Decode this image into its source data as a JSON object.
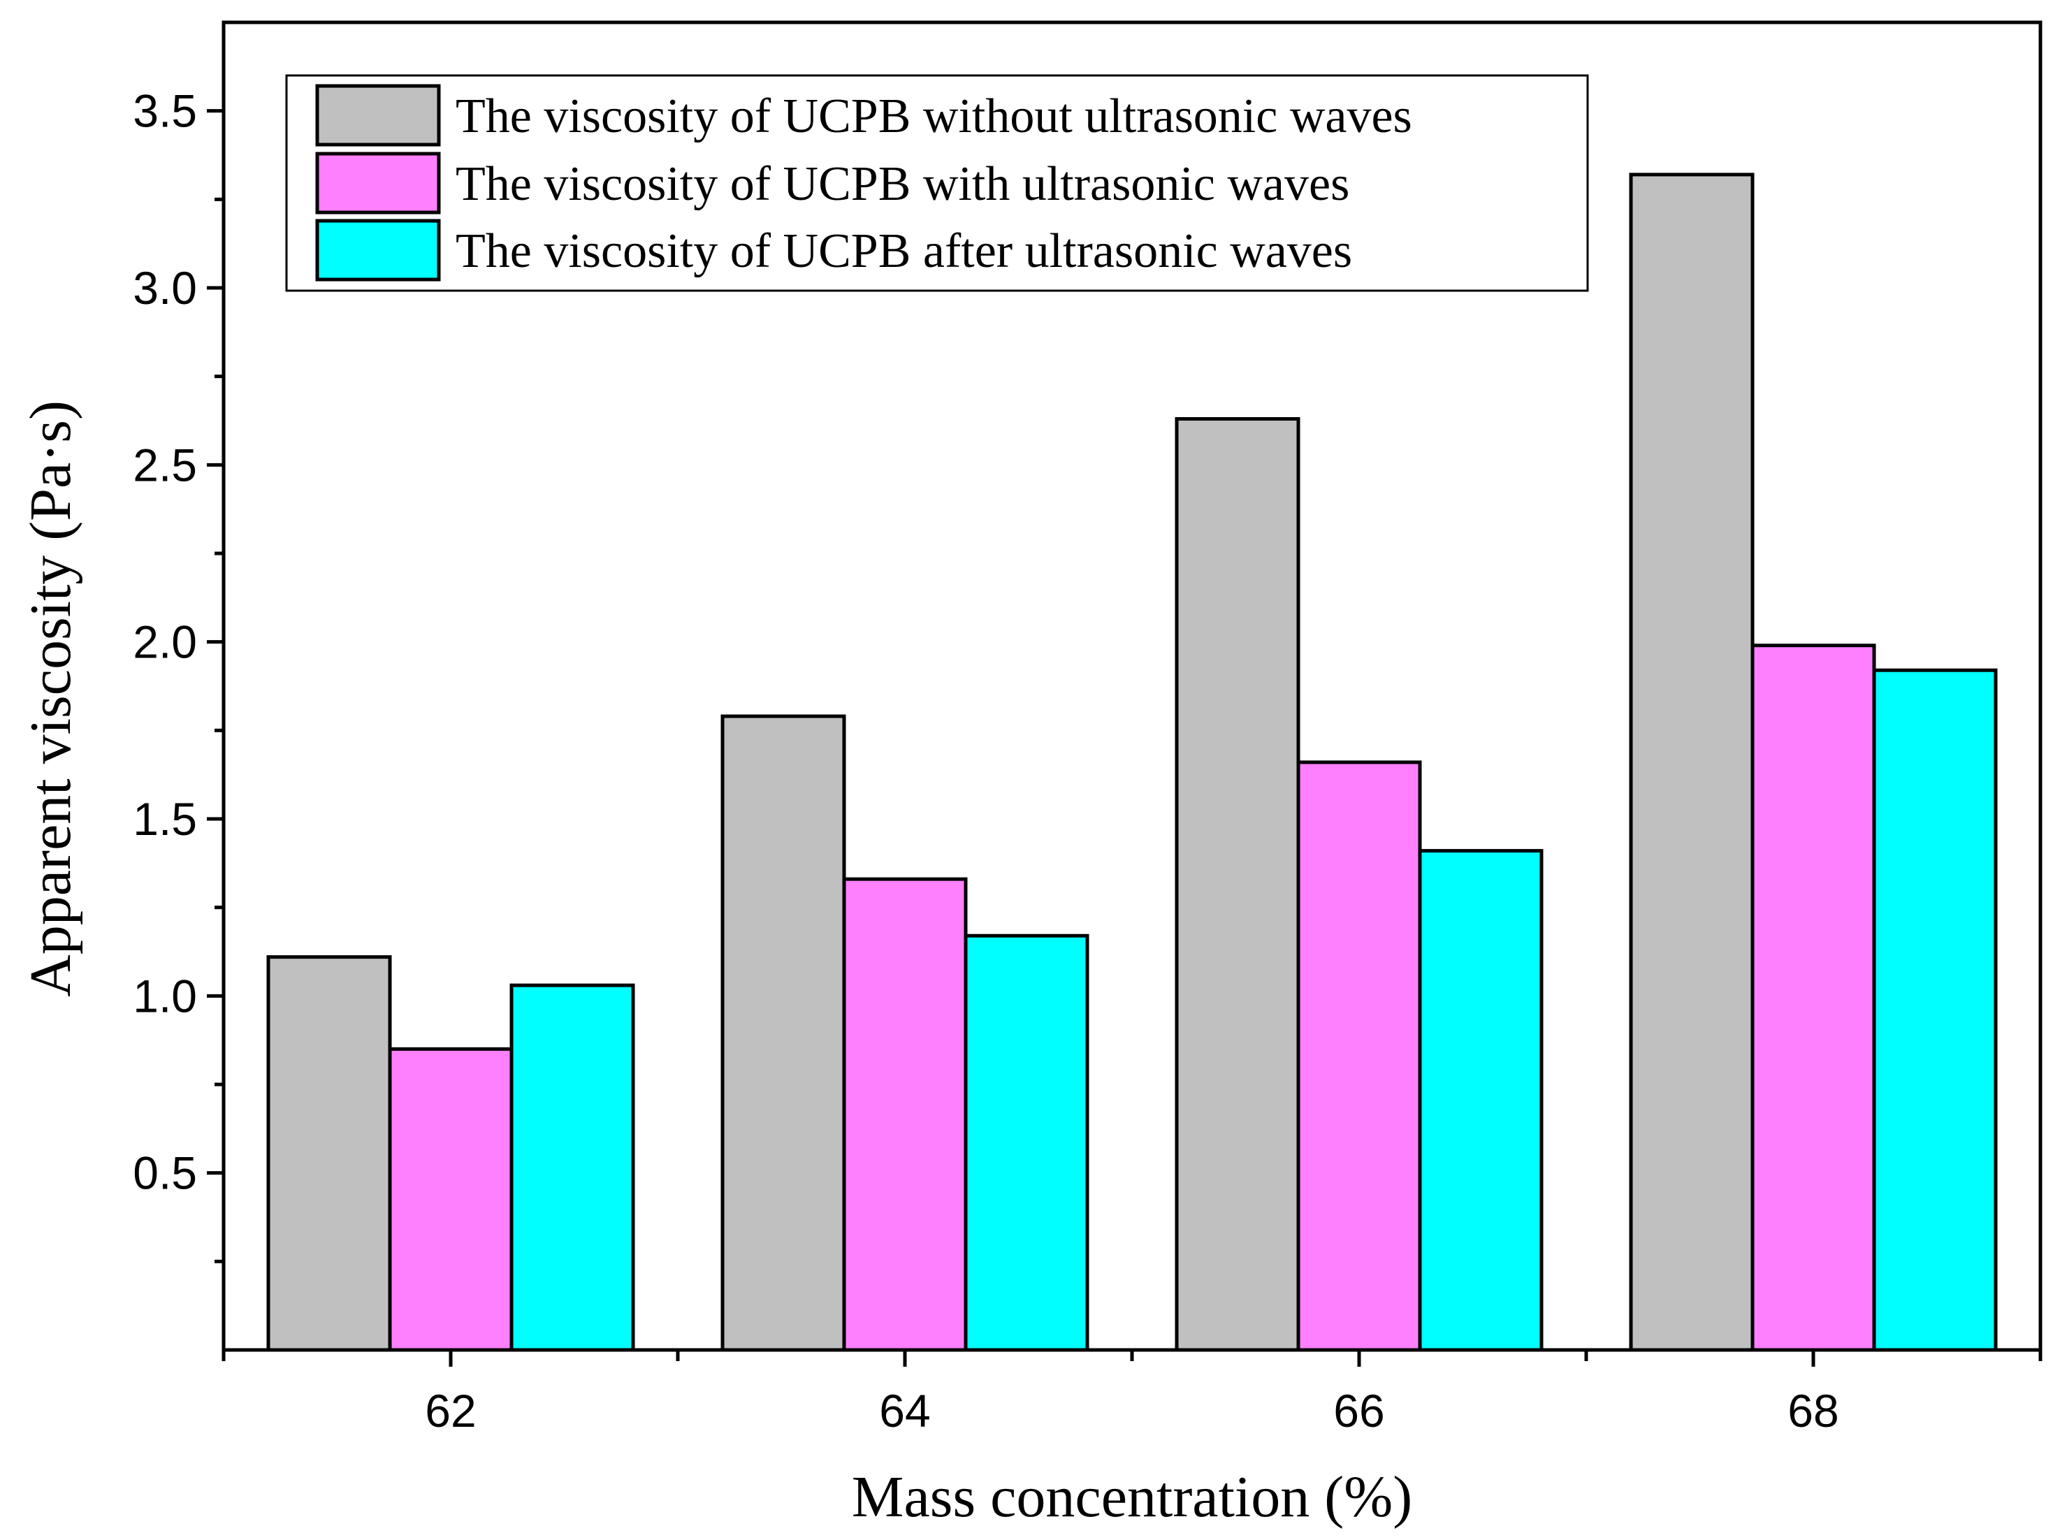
{
  "chart_data": {
    "type": "bar",
    "title": "",
    "xlabel": "Mass concentration (%)",
    "ylabel": "Apparent viscosity (Pa·s)",
    "categories": [
      "62",
      "64",
      "66",
      "68"
    ],
    "ylim": [
      0,
      3.75
    ],
    "yticks": [
      0.5,
      1.0,
      1.5,
      2.0,
      2.5,
      3.0,
      3.5
    ],
    "ytick_labels": [
      "0.5",
      "1.0",
      "1.5",
      "2.0",
      "2.5",
      "3.0",
      "3.5"
    ],
    "legend_position": "top-left",
    "grid": false,
    "series": [
      {
        "name": "The viscosity of UCPB without ultrasonic waves",
        "color": "#c0c0c0",
        "values": [
          1.11,
          1.79,
          2.63,
          3.32
        ]
      },
      {
        "name": "The viscosity of UCPB with ultrasonic waves",
        "color": "#ff80ff",
        "values": [
          0.85,
          1.33,
          1.66,
          1.99
        ]
      },
      {
        "name": "The viscosity of UCPB after ultrasonic waves",
        "color": "#00ffff",
        "values": [
          1.03,
          1.17,
          1.41,
          1.92
        ]
      }
    ]
  }
}
